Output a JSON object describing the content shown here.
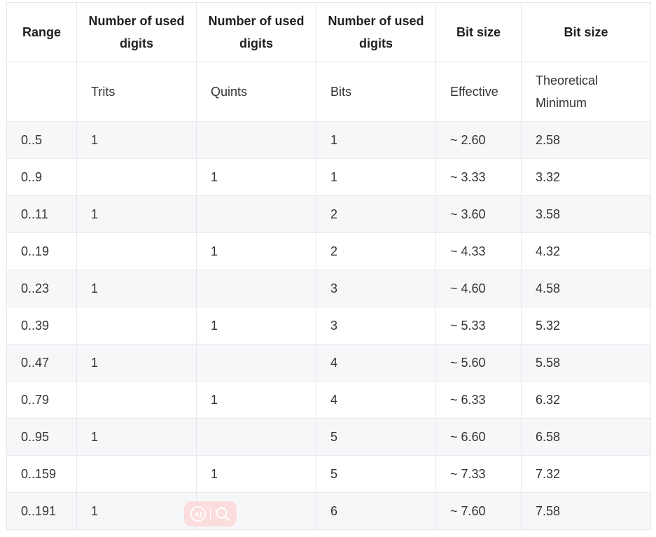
{
  "table": {
    "headers": [
      "Range",
      "Number of used digits",
      "Number of used digits",
      "Number of used digits",
      "Bit size",
      "Bit size"
    ],
    "subheaders": [
      "",
      "Trits",
      "Quints",
      "Bits",
      "Effective",
      "Theoretical Minimum"
    ],
    "rows": [
      [
        "0..5",
        "1",
        "",
        "1",
        "~ 2.60",
        "2.58"
      ],
      [
        "0..9",
        "",
        "1",
        "1",
        "~ 3.33",
        "3.32"
      ],
      [
        "0..11",
        "1",
        "",
        "2",
        "~ 3.60",
        "3.58"
      ],
      [
        "0..19",
        "",
        "1",
        "2",
        "~ 4.33",
        "4.32"
      ],
      [
        "0..23",
        "1",
        "",
        "3",
        "~ 4.60",
        "4.58"
      ],
      [
        "0..39",
        "",
        "1",
        "3",
        "~ 5.33",
        "5.32"
      ],
      [
        "0..47",
        "1",
        "",
        "4",
        "~ 5.60",
        "5.58"
      ],
      [
        "0..79",
        "",
        "1",
        "4",
        "~ 6.33",
        "6.32"
      ],
      [
        "0..95",
        "1",
        "",
        "5",
        "~ 6.60",
        "6.58"
      ],
      [
        "0..159",
        "",
        "1",
        "5",
        "~ 7.33",
        "7.32"
      ],
      [
        "0..191",
        "1",
        "",
        "6",
        "~ 7.60",
        "7.58"
      ]
    ]
  },
  "overlay": {
    "icons": [
      "ai-icon",
      "search-icon"
    ],
    "color": "#f7a3a3"
  }
}
